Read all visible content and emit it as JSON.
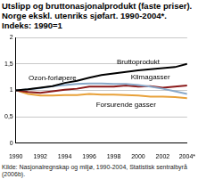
{
  "chart_data": {
    "type": "line",
    "title": "Utslipp og bruttonasjonalprodukt (faste priser). Norge ekskl. utenriks sjøfart. 1990-2004*. Indeks: 1990=1",
    "source": "Kilde: Nasjonalregnskap og miljø, 1990-2004, Statistisk sentralbyrå (2006b).",
    "categories": [
      "1990",
      null,
      "1992",
      null,
      "1994",
      null,
      "1996",
      null,
      "1998",
      null,
      "2000",
      null,
      "2002",
      null,
      "2004*"
    ],
    "series": [
      {
        "name": "Bruttoprodukt",
        "color": "#000000",
        "values": [
          1,
          1.02,
          1.05,
          1.08,
          1.14,
          1.18,
          1.24,
          1.29,
          1.32,
          1.35,
          1.38,
          1.4,
          1.42,
          1.44,
          1.5
        ]
      },
      {
        "name": "Ozon-forløpere",
        "color": "#8aa9c9",
        "values": [
          1,
          1.02,
          1.04,
          1.08,
          1.1,
          1.12,
          1.13,
          1.13,
          1.12,
          1.12,
          1.1,
          1.07,
          1.03,
          0.98,
          0.93
        ]
      },
      {
        "name": "Klimagasser",
        "color": "#8b1a1a",
        "values": [
          1,
          0.97,
          0.95,
          0.98,
          1.01,
          1.03,
          1.07,
          1.07,
          1.07,
          1.09,
          1.07,
          1.08,
          1.05,
          1.07,
          1.09
        ]
      },
      {
        "name": "Forsurende gasser",
        "color": "#e8a13a",
        "values": [
          1,
          0.93,
          0.9,
          0.9,
          0.91,
          0.91,
          0.93,
          0.92,
          0.92,
          0.91,
          0.9,
          0.88,
          0.88,
          0.87,
          0.85
        ]
      }
    ],
    "ylim": [
      0,
      2
    ],
    "yticks": [
      0,
      {
        "value": 0.5,
        "label": "0,5"
      },
      1,
      {
        "value": 1.5,
        "label": "1,5"
      },
      2
    ],
    "grid": true
  }
}
